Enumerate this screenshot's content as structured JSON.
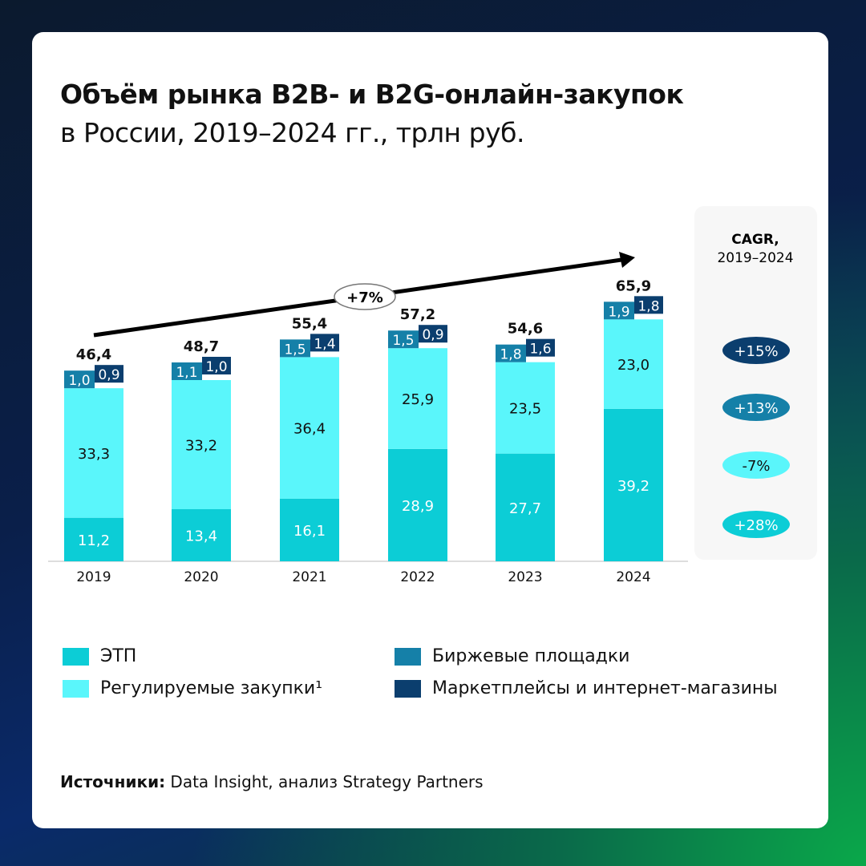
{
  "title": {
    "line1": "Объём рынка B2B- и B2G-онлайн-закупок",
    "line2": "в России, 2019–2024 гг., трлн руб."
  },
  "colors": {
    "etp": "#0ccdd6",
    "regulated": "#5af6fb",
    "exchange": "#1580a8",
    "marketplace": "#0b3e6e"
  },
  "chart_data": {
    "type": "bar",
    "stacked": true,
    "categories": [
      "2019",
      "2020",
      "2021",
      "2022",
      "2023",
      "2024"
    ],
    "series": [
      {
        "name": "ЭТП",
        "key": "etp",
        "values": [
          11.2,
          13.4,
          16.1,
          28.9,
          27.7,
          39.2
        ],
        "labels": [
          "11,2",
          "13,4",
          "16,1",
          "28,9",
          "27,7",
          "39,2"
        ]
      },
      {
        "name": "Регулируемые закупки¹",
        "key": "regulated",
        "values": [
          33.3,
          33.2,
          36.4,
          25.9,
          23.5,
          23.0
        ],
        "labels": [
          "33,3",
          "33,2",
          "36,4",
          "25,9",
          "23,5",
          "23,0"
        ]
      },
      {
        "name": "Биржевые площадки",
        "key": "exchange",
        "values": [
          1.0,
          1.1,
          1.5,
          1.5,
          1.8,
          1.9
        ],
        "labels": [
          "1,0",
          "1,1",
          "1,5",
          "1,5",
          "1,8",
          "1,9"
        ]
      },
      {
        "name": "Маркетплейсы и интернет-магазины",
        "key": "marketplace",
        "values": [
          0.9,
          1.0,
          1.4,
          0.9,
          1.6,
          1.8
        ],
        "labels": [
          "0,9",
          "1,0",
          "1,4",
          "0,9",
          "1,6",
          "1,8"
        ]
      }
    ],
    "totals": [
      "46,4",
      "48,7",
      "55,4",
      "57,2",
      "54,6",
      "65,9"
    ],
    "total_growth": "+7%",
    "ylabel": "трлн руб."
  },
  "cagr": {
    "title": "CAGR,",
    "period": "2019–2024",
    "items": [
      {
        "label": "+15%",
        "key": "marketplace"
      },
      {
        "label": "+13%",
        "key": "exchange"
      },
      {
        "label": "-7%",
        "key": "regulated"
      },
      {
        "label": "+28%",
        "key": "etp"
      }
    ]
  },
  "legend": [
    "ЭТП",
    "Регулируемые закупки¹",
    "Биржевые площадки",
    "Маркетплейсы и интернет-магазины"
  ],
  "source": {
    "label": "Источники:",
    "text": " Data Insight, анализ Strategy Partners"
  }
}
